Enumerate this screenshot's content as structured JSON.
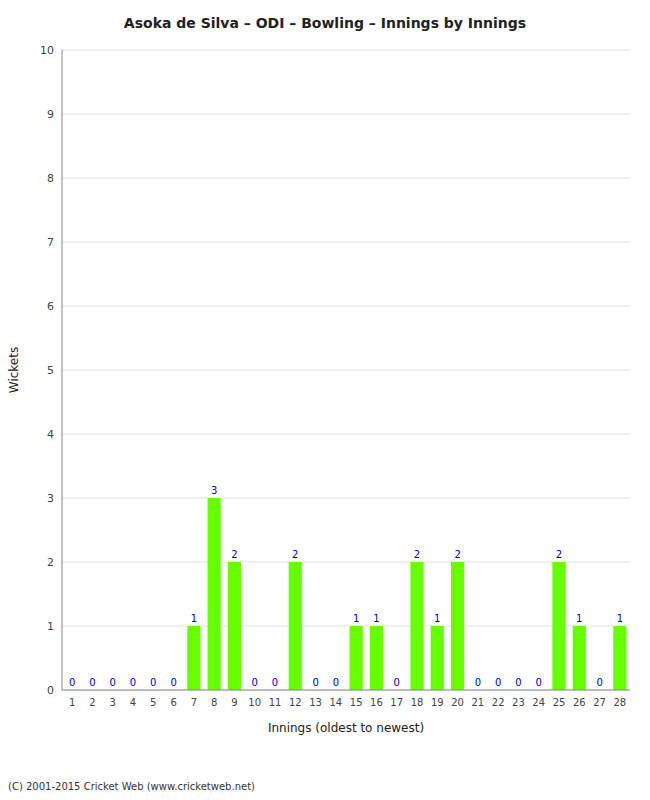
{
  "chart_data": {
    "type": "bar",
    "title": "Asoka de Silva – ODI – Bowling – Innings by Innings",
    "x_label": "Innings (oldest to newest)",
    "y_label": "Wickets",
    "categories": [
      "1",
      "2",
      "3",
      "4",
      "5",
      "6",
      "7",
      "8",
      "9",
      "10",
      "11",
      "12",
      "13",
      "14",
      "15",
      "16",
      "17",
      "18",
      "19",
      "20",
      "21",
      "22",
      "23",
      "24",
      "25",
      "26",
      "27",
      "28"
    ],
    "values": [
      0,
      0,
      0,
      0,
      0,
      0,
      1,
      3,
      2,
      0,
      0,
      2,
      0,
      0,
      1,
      1,
      0,
      2,
      1,
      2,
      0,
      0,
      0,
      0,
      2,
      1,
      0,
      1
    ],
    "color": "#66ff00",
    "ylim": [
      0,
      10
    ],
    "yticks": [
      0,
      1,
      2,
      3,
      4,
      5,
      6,
      7,
      8,
      9,
      10
    ],
    "grid": true,
    "data_labels": true,
    "annotations": [
      "(C) 2001-2015 Cricket Web (www.cricketweb.net)"
    ]
  }
}
